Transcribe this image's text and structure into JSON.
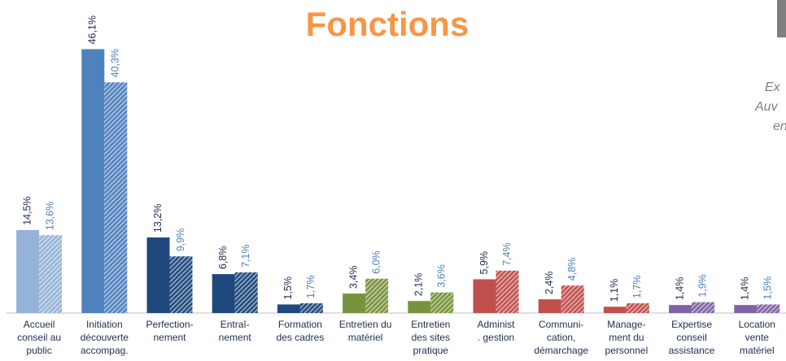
{
  "chart_data": {
    "type": "bar",
    "title": "Fonctions",
    "side_text": [
      "Ex",
      "Auv",
      "en"
    ],
    "categories": [
      [
        "Accueil",
        "conseil au",
        "public"
      ],
      [
        "Initiation",
        "découverte",
        "accompag."
      ],
      [
        "Perfection-",
        "nement"
      ],
      [
        "Entraî-",
        "nement"
      ],
      [
        "Formation",
        "des cadres"
      ],
      [
        "Entretien du",
        "matériel"
      ],
      [
        "Entretien",
        "des sites",
        "pratique"
      ],
      [
        "Administ",
        ". gestion"
      ],
      [
        "Communi-",
        "cation,",
        "démarchage"
      ],
      [
        "Manage-",
        "ment du",
        "personnel"
      ],
      [
        "Expertise",
        "conseil",
        "assistance"
      ],
      [
        "Location",
        "vente",
        "matériel"
      ]
    ],
    "colors": [
      "#95b3d7",
      "#4f81bd",
      "#1f497d",
      "#1f497d",
      "#1f497d",
      "#77933c",
      "#77933c",
      "#c0504d",
      "#c0504d",
      "#c0504d",
      "#8064a2",
      "#8064a2"
    ],
    "series": [
      {
        "hatched": false,
        "label_color": "#1f2d4d",
        "values": [
          14.5,
          46.1,
          13.2,
          6.8,
          1.5,
          3.4,
          2.1,
          5.9,
          2.4,
          1.1,
          1.4,
          1.4
        ],
        "value_labels": [
          "14,5%",
          "46,1%",
          "13,2%",
          "6,8%",
          "1,5%",
          "3,4%",
          "2,1%",
          "5,9%",
          "2,4%",
          "1,1%",
          "1,4%",
          "1,4%"
        ]
      },
      {
        "hatched": true,
        "label_color": "#4f81bd",
        "values": [
          13.6,
          40.3,
          9.9,
          7.1,
          1.7,
          6.0,
          3.6,
          7.4,
          4.8,
          1.7,
          1.9,
          1.5
        ],
        "value_labels": [
          "13,6%",
          "40,3%",
          "9,9%",
          "7,1%",
          "1,7%",
          "6,0%",
          "3,6%",
          "7,4%",
          "4,8%",
          "1,7%",
          "1,9%",
          "1,5%"
        ]
      }
    ],
    "ylim": [
      0,
      50
    ]
  }
}
